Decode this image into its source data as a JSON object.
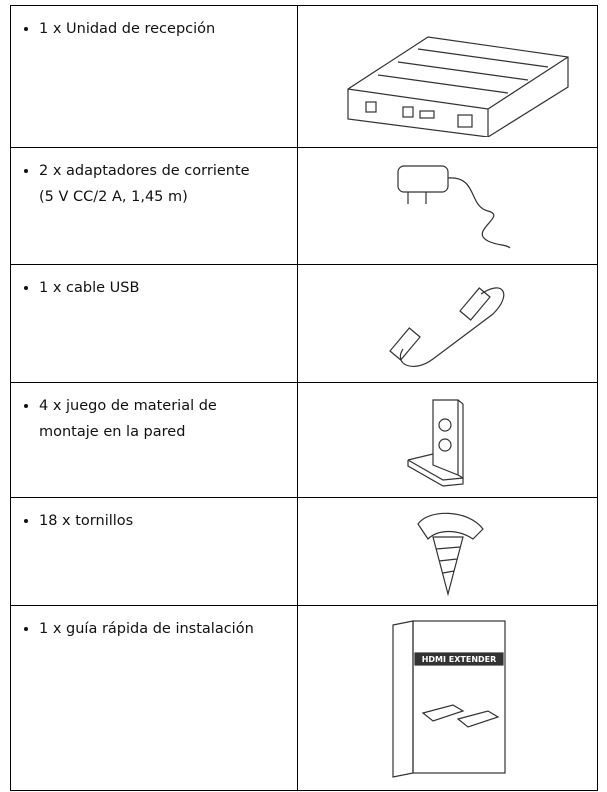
{
  "items": [
    {
      "text": "1 x Unidad de recepción"
    },
    {
      "text": "2 x adaptadores de corriente (5 V CC/2 A, 1,45 m)"
    },
    {
      "text": "1 x cable USB"
    },
    {
      "text": "4 x juego de material de montaje en la pared"
    },
    {
      "text": "18 x tornillos"
    },
    {
      "text": "1 x guía rápida de instalación",
      "image_title": "HDMI EXTENDER"
    }
  ]
}
